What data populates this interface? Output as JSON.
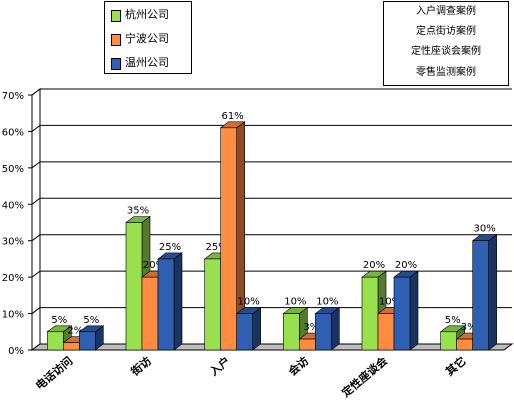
{
  "chart_data": {
    "type": "bar",
    "categories": [
      "电话访问",
      "街访",
      "入户",
      "会访",
      "定性座谈会",
      "其它"
    ],
    "series": [
      {
        "name": "杭州公司",
        "color": "#99e04f",
        "values": [
          5,
          35,
          25,
          10,
          20,
          5
        ],
        "labels": [
          "5%",
          "35%",
          "25%",
          "10%",
          "20%",
          "5%"
        ]
      },
      {
        "name": "宁波公司",
        "color": "#ff8c40",
        "values": [
          2,
          20,
          61,
          3,
          10,
          3
        ],
        "labels": [
          "2%",
          "20%",
          "61%",
          "3%",
          "10%",
          "3%"
        ]
      },
      {
        "name": "温州公司",
        "color": "#2e5fb0",
        "values": [
          5,
          25,
          10,
          10,
          20,
          30
        ],
        "labels": [
          "5%",
          "25%",
          "10%",
          "10%",
          "20%",
          "30%"
        ]
      }
    ],
    "yticks": [
      "0%",
      "10%",
      "20%",
      "30%",
      "40%",
      "50%",
      "60%",
      "70%"
    ],
    "ylim": [
      0,
      70
    ],
    "grid": true,
    "legend_position": "top-left",
    "notes": [
      "入户调查案例",
      "定点街访案例",
      "定性座谈会案例",
      "零售监测案例"
    ]
  }
}
